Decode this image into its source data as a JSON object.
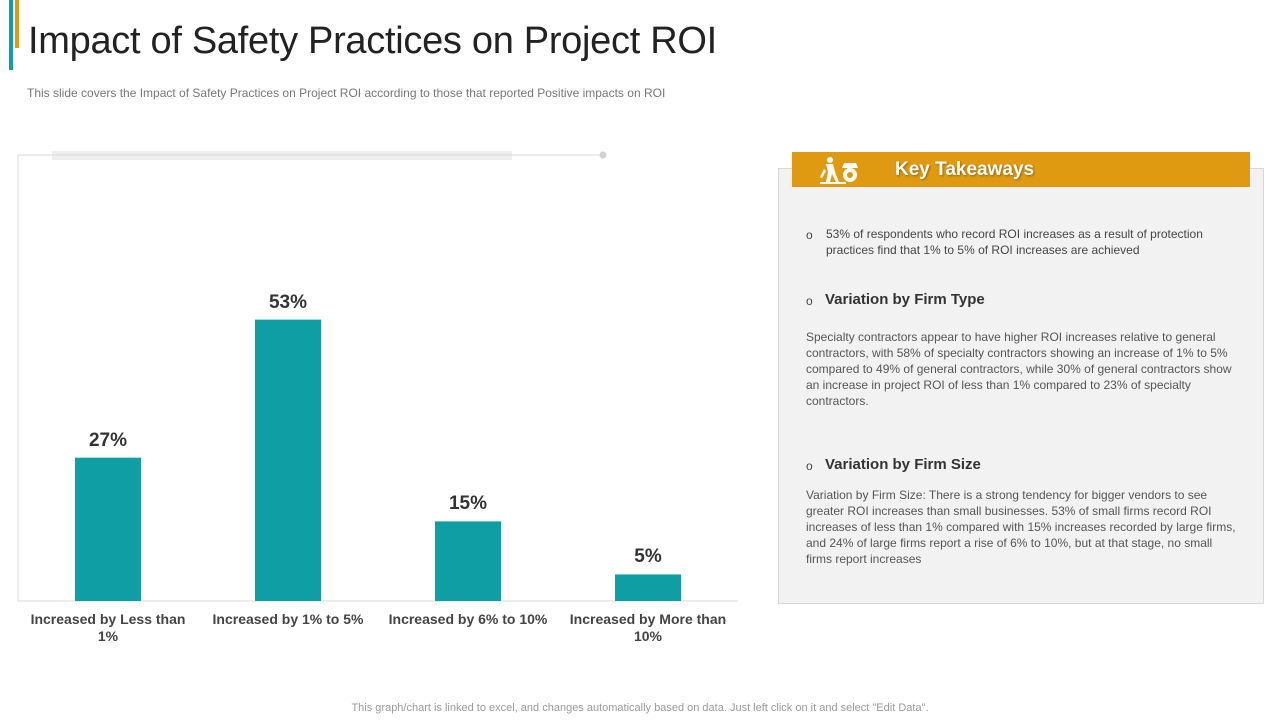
{
  "title": "Impact of Safety Practices on Project ROI",
  "subtitle": "This slide covers the Impact of Safety Practices on Project ROI according to those that reported Positive impacts on ROI",
  "chart_data": {
    "type": "bar",
    "categories": [
      "Increased by Less than 1%",
      "Increased by 1% to 5%",
      "Increased by 6% to 10%",
      "Increased by More than 10%"
    ],
    "values": [
      27,
      53,
      15,
      5
    ],
    "value_labels": [
      "27%",
      "53%",
      "15%",
      "5%"
    ],
    "ylim": [
      0,
      68
    ],
    "bar_color": "#0f9ea3",
    "grid": false
  },
  "takeaways": {
    "header": "Key Takeaways",
    "icon": "construction-worker-icon",
    "item1": "53% of respondents who record ROI increases as a result of protection practices find that 1% to 5% of ROI increases are achieved",
    "firm_type_heading": "Variation by Firm Type",
    "firm_type_text": "Specialty contractors appear to have  higher ROI increases relative to general contractors, with 58% of specialty contractors showing an increase of 1% to 5% compared to 49% of general contractors, while 30% of general contractors show an increase in project ROI of less than 1% compared to 23% of specialty contractors.",
    "firm_size_heading": "Variation by Firm Size",
    "firm_size_text": "Variation by Firm Size: There  is a strong tendency for bigger vendors  to see greater ROI increases than small businesses. 53% of small firms record ROI increases of less than 1% compared  with 15% increases recorded by large firms, and 24% of large firms report  a rise of 6% to 10%, but at that stage, no small firms report increases",
    "bullet": "o"
  },
  "footnote": "This graph/chart is linked to excel,  and changes automatically based on data. Just left click on it and select \"Edit Data\".",
  "colors": {
    "accent_orange": "#e09a12",
    "accent_teal": "#0f9ea3",
    "panel_bg": "#f2f2f2"
  }
}
